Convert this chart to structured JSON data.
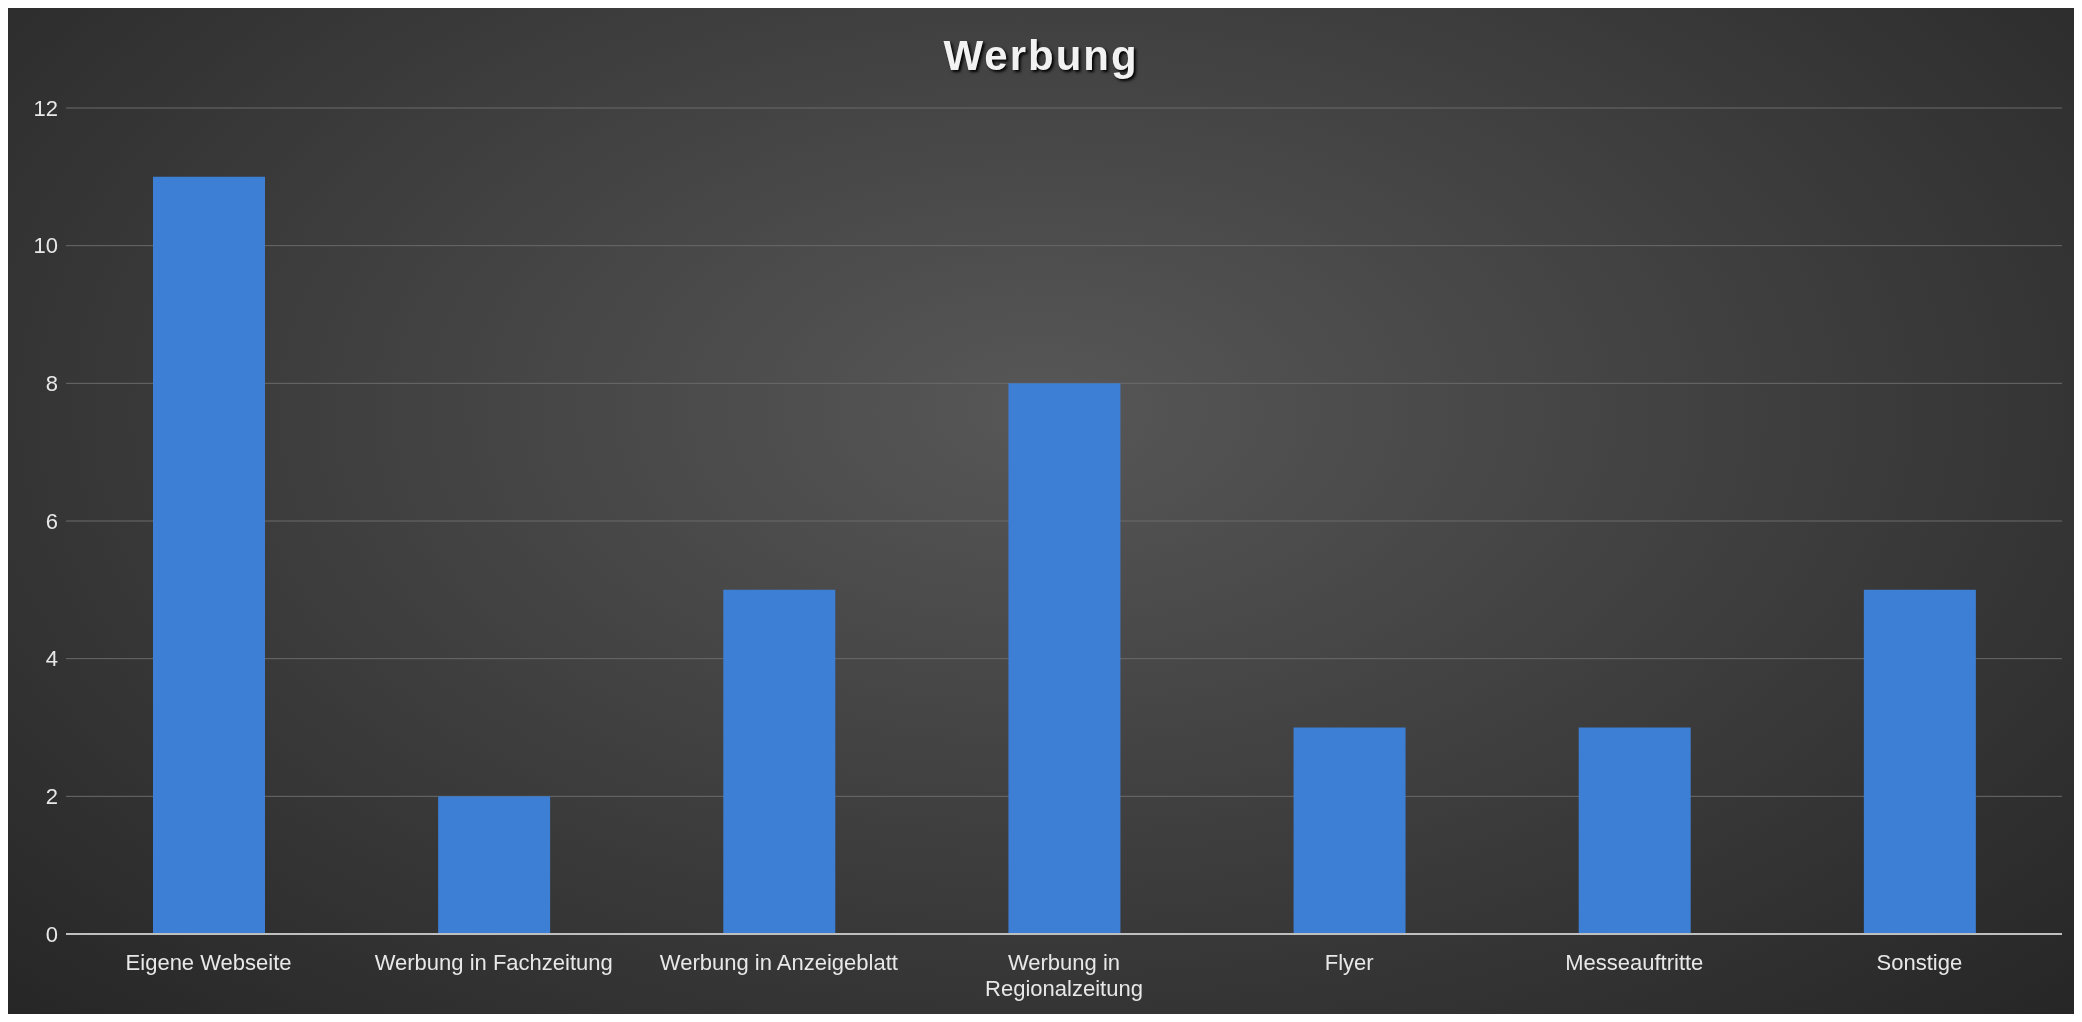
{
  "chart_data": {
    "type": "bar",
    "title": "Werbung",
    "categories": [
      "Eigene Webseite",
      "Werbung in Fachzeitung",
      "Werbung in Anzeigeblatt",
      "Werbung in Regionalzeitung",
      "Flyer",
      "Messeauftritte",
      "Sonstige"
    ],
    "values": [
      11,
      2,
      5,
      8,
      3,
      3,
      5
    ],
    "color": "#3d7fd4",
    "ylim": [
      0,
      12
    ],
    "yticks": [
      0,
      2,
      4,
      6,
      8,
      10,
      12
    ],
    "grid": "y",
    "legend": false
  }
}
